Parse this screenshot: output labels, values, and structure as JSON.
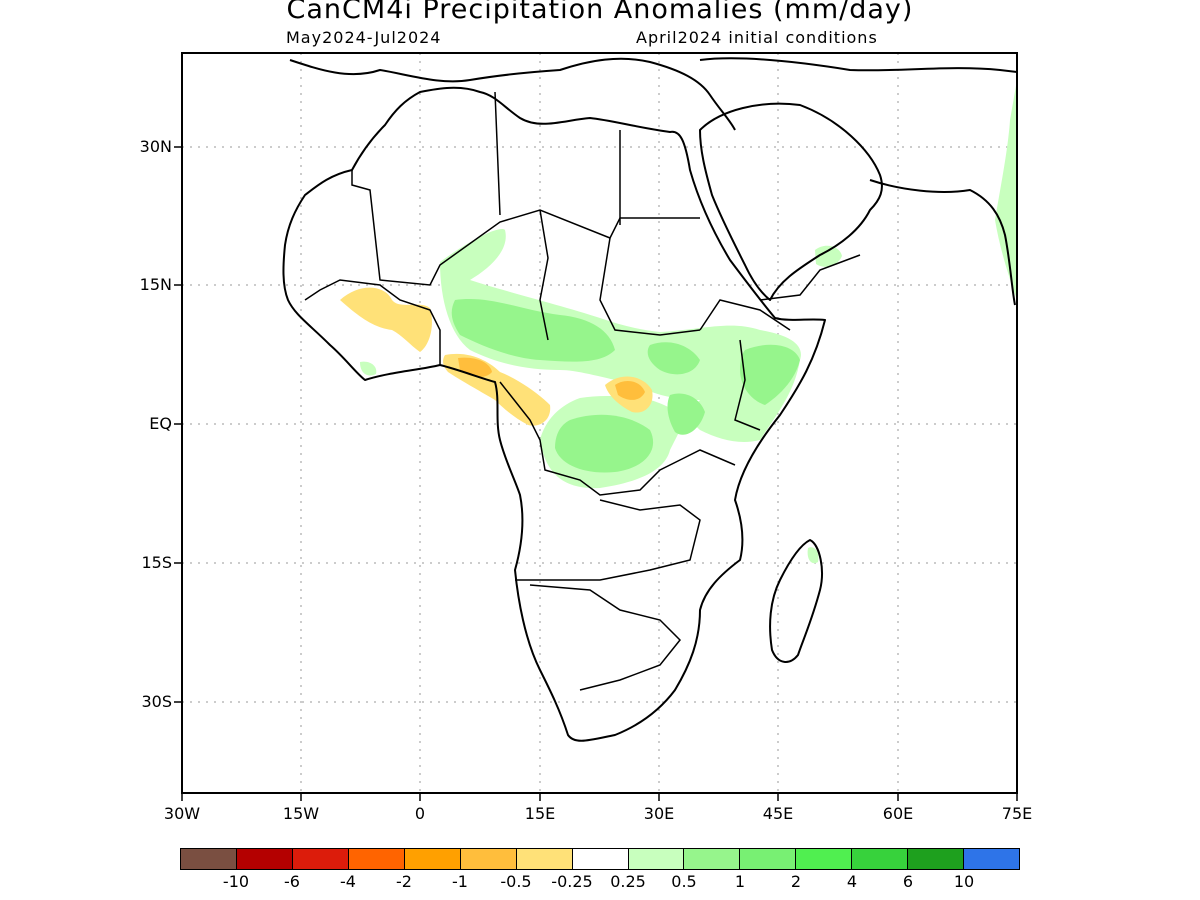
{
  "title": "CanCM4i Precipitation Anomalies (mm/day)",
  "subtitle_left": "May2024-Jul2024",
  "subtitle_right": "April2024 initial conditions",
  "lat_labels": [
    "30N",
    "15N",
    "EQ",
    "15S",
    "30S"
  ],
  "lon_labels": [
    "30W",
    "15W",
    "0",
    "15E",
    "30E",
    "45E",
    "60E",
    "75E"
  ],
  "colorbar": {
    "colors": [
      "#7a4f41",
      "#b40000",
      "#dc1c0b",
      "#ff6400",
      "#ffa000",
      "#ffbe3c",
      "#ffe178",
      "#ffffff",
      "#c8ffbe",
      "#96f58c",
      "#78f073",
      "#50ef50",
      "#37d23c",
      "#1ea01e",
      "#2e74e8"
    ],
    "labels": [
      "-10",
      "-6",
      "-4",
      "-2",
      "-1",
      "-0.5",
      "-0.25",
      "0.25",
      "0.5",
      "1",
      "2",
      "4",
      "6",
      "10"
    ]
  }
}
